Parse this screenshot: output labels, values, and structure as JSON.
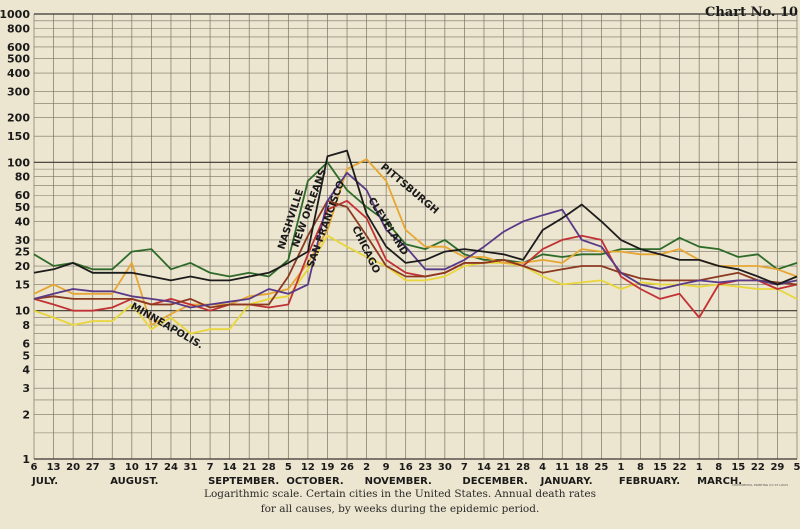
{
  "chart_data": {
    "type": "line",
    "title": "Chart No. 10",
    "caption_line1": "Logarithmic scale.  Certain cities in the United States.  Annual death rates",
    "caption_line2": "for all causes, by weeks during the epidemic period.",
    "imprint": "CONTINENTAL PRINTING CO ST LOUIS",
    "y_scale": "log",
    "ylim": [
      1,
      1000
    ],
    "grid": true,
    "y_ticks": [
      "1000",
      "800",
      "600",
      "500",
      "400",
      "300",
      "200",
      "150",
      "100",
      "80",
      "60",
      "50",
      "40",
      "30",
      "25",
      "20",
      "15",
      "10",
      "8",
      "6",
      "5",
      "4",
      "3",
      "2",
      "1"
    ],
    "x": [
      "6",
      "13",
      "20",
      "27",
      "3",
      "10",
      "17",
      "24",
      "31",
      "7",
      "14",
      "21",
      "28",
      "5",
      "12",
      "19",
      "26",
      "2",
      "9",
      "16",
      "23",
      "30",
      "7",
      "14",
      "21",
      "28",
      "4",
      "11",
      "18",
      "25",
      "1",
      "8",
      "15",
      "22",
      "1",
      "8",
      "15",
      "22",
      "29",
      "5"
    ],
    "months": [
      {
        "label": "JULY.",
        "start": 0
      },
      {
        "label": "AUGUST.",
        "start": 4
      },
      {
        "label": "SEPTEMBER.",
        "start": 9
      },
      {
        "label": "OCTOBER.",
        "start": 13
      },
      {
        "label": "NOVEMBER.",
        "start": 17
      },
      {
        "label": "DECEMBER.",
        "start": 22
      },
      {
        "label": "JANUARY.",
        "start": 26
      },
      {
        "label": "FEBRUARY.",
        "start": 30
      },
      {
        "label": "MARCH.",
        "start": 34
      }
    ],
    "series": [
      {
        "name": "NASHVILLE",
        "color": "#2e6b2a",
        "values": [
          24,
          20,
          21,
          19,
          19,
          25,
          26,
          19,
          21,
          18,
          17,
          18,
          17,
          22,
          75,
          100,
          65,
          50,
          40,
          28,
          26,
          30,
          24,
          22,
          22,
          21,
          24,
          23,
          24,
          24,
          26,
          26,
          26,
          31,
          27,
          26,
          23,
          24,
          19,
          21
        ]
      },
      {
        "label_only": "MINNEAPOLIS",
        "name": "MINNEAPOLIS",
        "color": "#e8d63a",
        "values": [
          10,
          9,
          8,
          8.5,
          8.5,
          11,
          7.5,
          9,
          7,
          7.5,
          7.5,
          11,
          12,
          12.5,
          19,
          32,
          27,
          23,
          20,
          16,
          16,
          17,
          20,
          21,
          21,
          20,
          17,
          15,
          15.5,
          16,
          14,
          15.5,
          15,
          15,
          14.5,
          15,
          14.5,
          14,
          14,
          12
        ]
      },
      {
        "name": "NEW ORLEANS",
        "color": "#e6a634",
        "values": [
          13,
          15,
          13,
          13,
          13,
          21,
          8,
          9.5,
          11,
          11,
          11,
          12.5,
          13,
          14,
          21,
          35,
          90,
          105,
          75,
          35,
          27,
          27,
          23,
          23,
          21,
          21,
          22,
          21,
          26,
          25,
          25,
          24,
          24,
          26,
          22,
          20,
          20,
          20,
          19,
          17
        ]
      },
      {
        "name": "SAN FRANCISCO",
        "color": "#c23234",
        "values": [
          12,
          11,
          10,
          10,
          10.5,
          12,
          11,
          12,
          11,
          10,
          11,
          11,
          10.5,
          11,
          24,
          48,
          55,
          42,
          22,
          18,
          17,
          18,
          21,
          21,
          22,
          20,
          26,
          30,
          32,
          30,
          17,
          14,
          12,
          13,
          9,
          15,
          16,
          16,
          14,
          15
        ]
      },
      {
        "name": "CHICAGO",
        "color": "#8b3a20",
        "values": [
          12,
          12.5,
          12,
          12,
          12,
          12,
          11,
          11,
          12,
          10.5,
          11,
          11,
          11,
          17,
          32,
          55,
          50,
          32,
          20,
          17,
          17,
          18,
          21,
          21,
          22,
          20,
          18,
          19,
          20,
          20,
          18,
          16.5,
          16,
          16,
          16,
          17,
          18,
          16,
          15.5,
          15
        ]
      },
      {
        "name": "CLEVELAND",
        "color": "#5a3a88",
        "values": [
          12,
          13,
          14,
          13.5,
          13.5,
          12.5,
          12,
          11.5,
          10.5,
          11,
          11.5,
          12,
          14,
          13,
          15,
          55,
          85,
          65,
          35,
          27,
          19,
          19,
          22,
          27,
          34,
          40,
          44,
          48,
          30,
          27,
          18,
          15,
          14,
          15,
          16,
          15.5,
          16,
          16,
          15,
          16
        ]
      },
      {
        "name": "PITTSBURGH",
        "color": "#1c1c1c",
        "values": [
          18,
          19,
          21,
          18,
          18,
          18,
          17,
          16,
          17,
          16,
          16,
          17,
          18,
          21,
          25,
          110,
          120,
          45,
          27,
          21,
          22,
          25,
          26,
          25,
          24,
          22,
          35,
          42,
          52,
          40,
          30,
          26,
          24,
          22,
          22,
          20,
          19,
          17,
          15,
          17
        ]
      }
    ],
    "series_labels": [
      "NASHVILLE",
      "NEW ORLEANS",
      "SAN FRANCISCO",
      "CHICAGO",
      "CLEVELAND",
      "PITTSBURGH",
      "MINNEAPOLIS."
    ]
  }
}
